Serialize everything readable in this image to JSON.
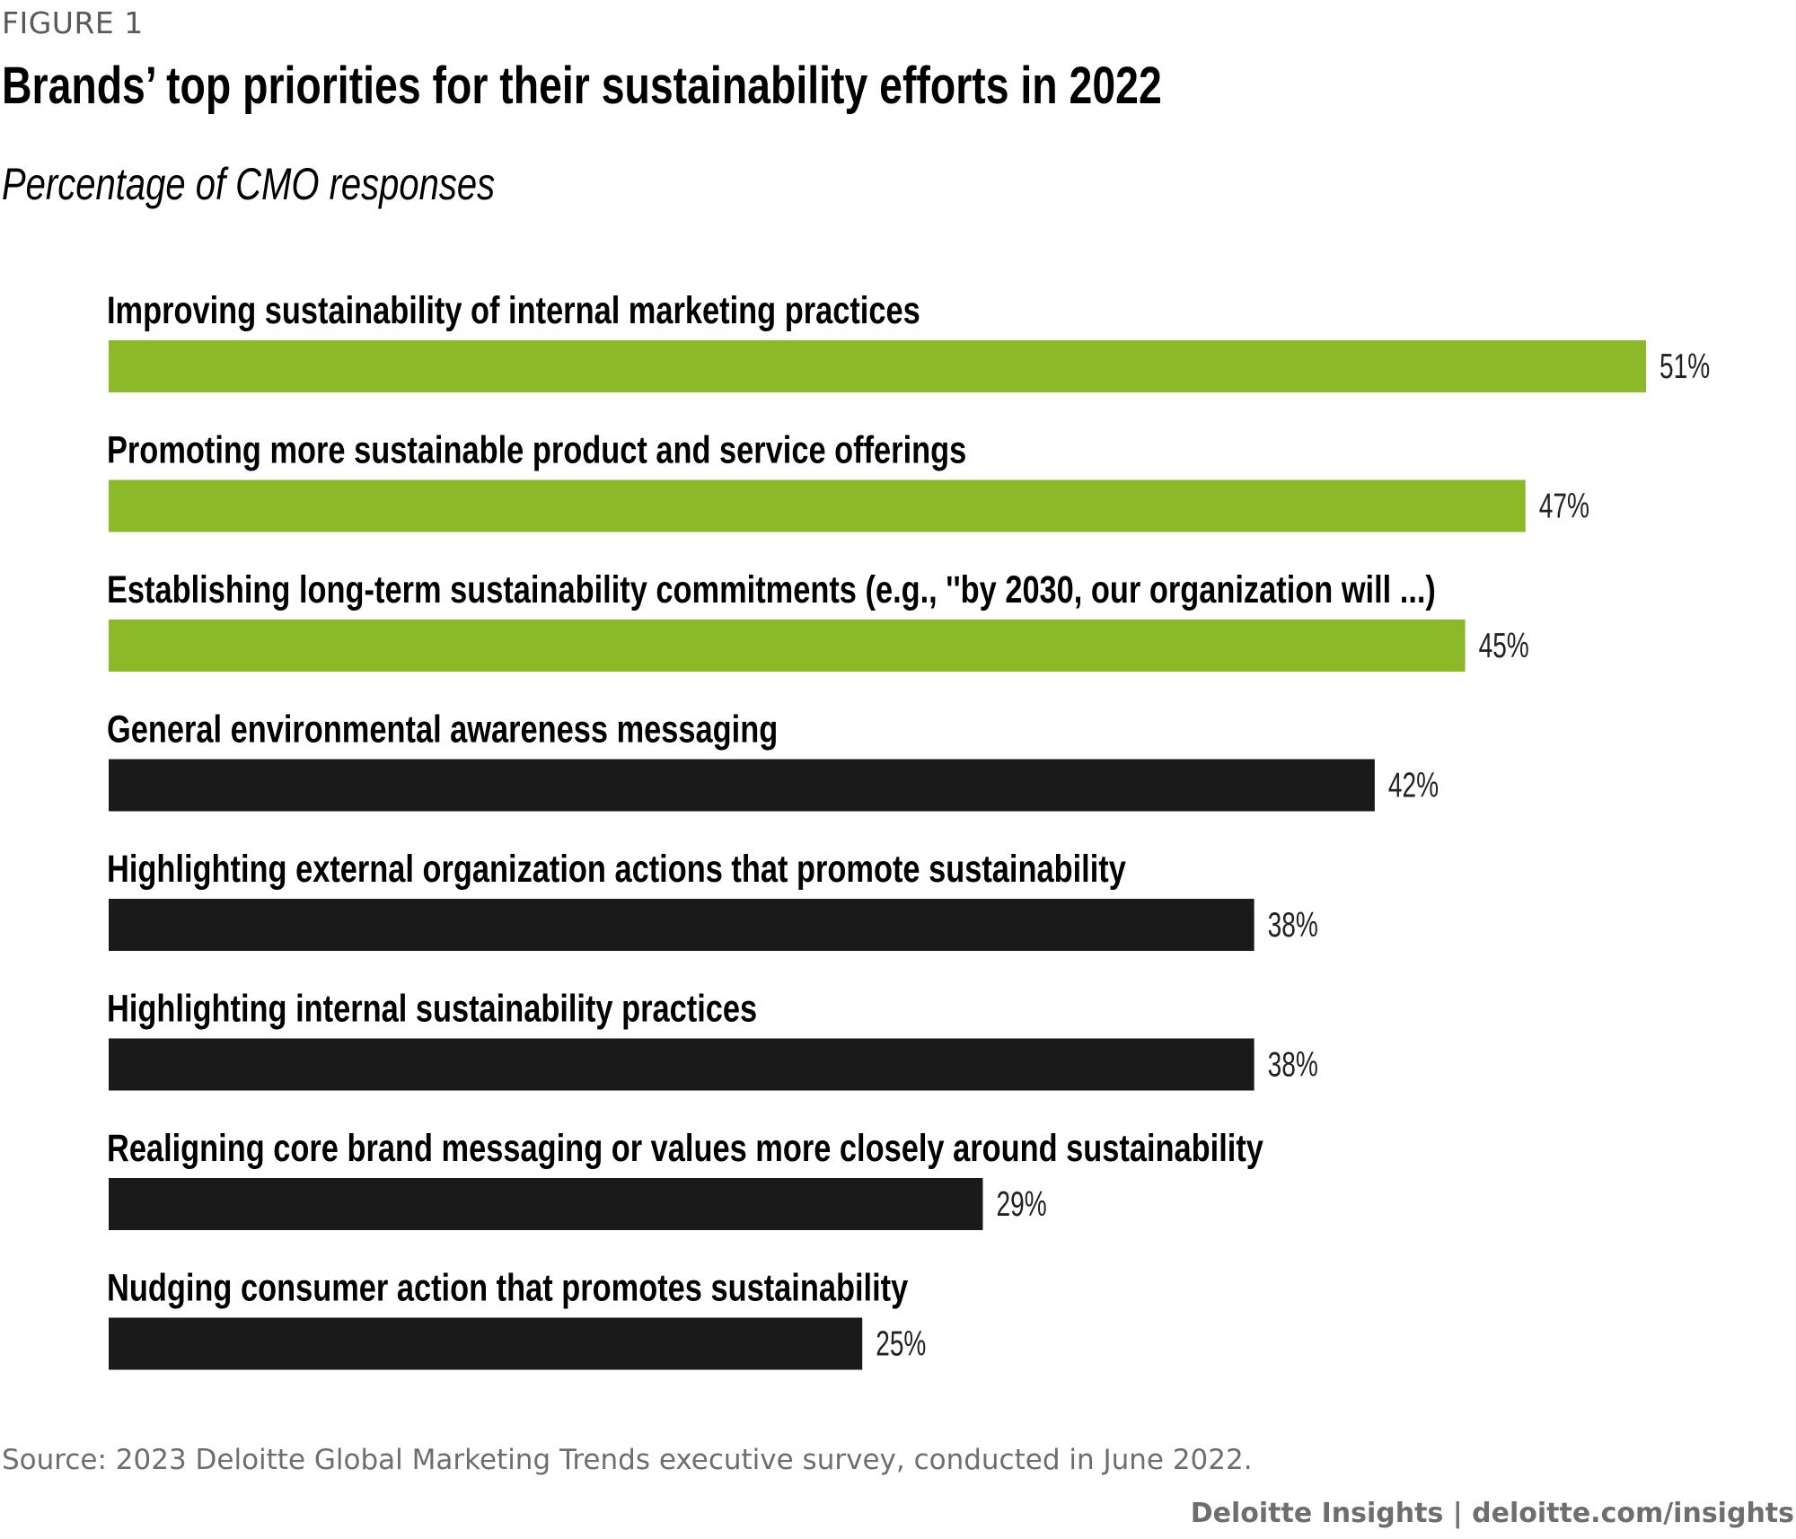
{
  "figure_label": "FIGURE 1",
  "title": "Brands’ top priorities for their sustainability efforts in 2022",
  "subtitle": "Percentage of CMO responses",
  "source": "Source: 2023 Deloitte Global Marketing Trends executive survey, conducted in June 2022.",
  "credit": "Deloitte Insights | deloitte.com/insights",
  "colors": {
    "highlight": "#8cb928",
    "default": "#1a1a1a"
  },
  "chart_data": {
    "type": "bar",
    "orientation": "horizontal",
    "title": "Brands’ top priorities for their sustainability efforts in 2022",
    "subtitle": "Percentage of CMO responses",
    "xlabel": "",
    "ylabel": "",
    "xlim": [
      0,
      51
    ],
    "grid": false,
    "legend": "none",
    "categories": [
      "Improving sustainability of internal marketing practices",
      "Promoting more sustainable product and service offerings",
      "Establishing long-term sustainability commitments (e.g., ''by 2030, our organization will ...)",
      "General environmental awareness messaging",
      "Highlighting external organization actions that promote sustainability",
      "Highlighting internal sustainability practices",
      "Realigning core brand messaging or values more closely around sustainability",
      "Nudging consumer action that promotes sustainability"
    ],
    "values": [
      51,
      47,
      45,
      42,
      38,
      38,
      29,
      25
    ],
    "value_labels": [
      "51%",
      "47%",
      "45%",
      "42%",
      "38%",
      "38%",
      "29%",
      "25%"
    ],
    "highlighted": [
      true,
      true,
      true,
      false,
      false,
      false,
      false,
      false
    ]
  }
}
